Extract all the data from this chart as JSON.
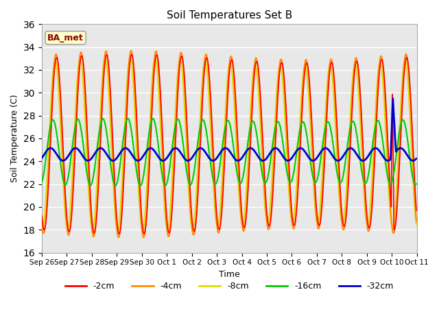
{
  "title": "Soil Temperatures Set B",
  "xlabel": "Time",
  "ylabel": "Soil Temperature (C)",
  "ylim": [
    16,
    36
  ],
  "yticks": [
    16,
    18,
    20,
    22,
    24,
    26,
    28,
    30,
    32,
    34,
    36
  ],
  "annotation_text": "BA_met",
  "annotation_color": "#8B0000",
  "annotation_bg": "#FFFFCC",
  "series_colors": {
    "-2cm": "#FF0000",
    "-4cm": "#FF8C00",
    "-8cm": "#DDDD00",
    "-16cm": "#00CC00",
    "-32cm": "#0000CC"
  },
  "series_widths": {
    "-2cm": 1.2,
    "-4cm": 1.5,
    "-8cm": 1.5,
    "-16cm": 1.5,
    "-32cm": 2.0
  },
  "plot_bg": "#E8E8E8",
  "grid_color": "#FFFFFF",
  "tick_labels": [
    "Sep 26",
    "Sep 27",
    "Sep 28",
    "Sep 29",
    "Sep 30",
    "Oct 1",
    "Oct 2",
    "Oct 3",
    "Oct 4",
    "Oct 5",
    "Oct 6",
    "Oct 7",
    "Oct 8",
    "Oct 9",
    "Oct 10",
    "Oct 11"
  ]
}
